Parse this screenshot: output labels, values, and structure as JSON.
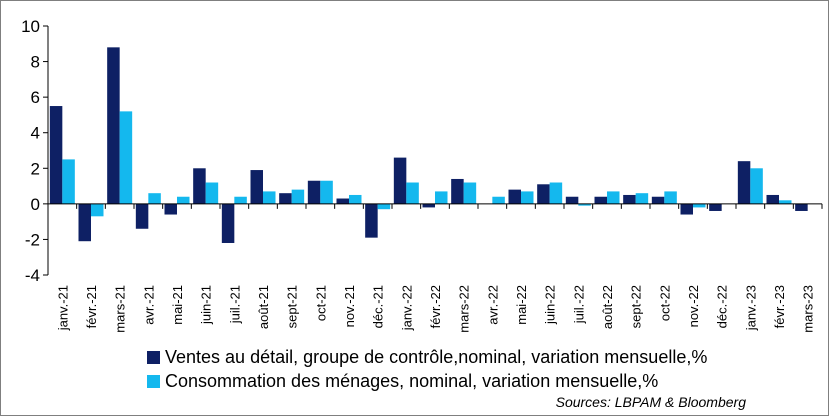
{
  "chart_data": {
    "type": "bar",
    "categories": [
      "janv.-21",
      "févr.-21",
      "mars-21",
      "avr.-21",
      "mai-21",
      "juin-21",
      "juil.-21",
      "août-21",
      "sept-21",
      "oct-21",
      "nov.-21",
      "déc.-21",
      "janv.-22",
      "févr.-22",
      "mars-22",
      "avr.-22",
      "mai-22",
      "juin-22",
      "juil.-22",
      "août-22",
      "sept-22",
      "oct-22",
      "nov.-22",
      "déc.-22",
      "janv.-23",
      "févr.-23",
      "mars-23"
    ],
    "series": [
      {
        "name": "Ventes au détail, groupe de contrôle,nominal, variation mensuelle,%",
        "color": "#0e2064",
        "values": [
          5.5,
          -2.1,
          8.8,
          -1.4,
          -0.6,
          2.0,
          -2.2,
          1.9,
          0.6,
          1.3,
          0.3,
          -1.9,
          2.6,
          -0.2,
          1.4,
          0.0,
          0.8,
          1.1,
          0.4,
          0.4,
          0.5,
          0.4,
          -0.6,
          -0.4,
          2.4,
          0.5,
          -0.4
        ]
      },
      {
        "name": "Consommation des ménages, nominal, variation mensuelle,%",
        "color": "#14b8ee",
        "values": [
          2.5,
          -0.7,
          5.2,
          0.6,
          0.4,
          1.2,
          0.4,
          0.7,
          0.8,
          1.3,
          0.5,
          -0.3,
          1.2,
          0.7,
          1.2,
          0.4,
          0.7,
          1.2,
          -0.1,
          0.7,
          0.6,
          0.7,
          -0.2,
          0.0,
          2.0,
          0.2,
          0.0
        ]
      }
    ],
    "yticks": [
      10,
      8,
      6,
      4,
      2,
      0,
      -2,
      -4
    ],
    "ylim": [
      -4,
      10
    ],
    "grid": false,
    "legend_position": "bottom-left"
  },
  "source": "Sources: LBPAM & Bloomberg"
}
